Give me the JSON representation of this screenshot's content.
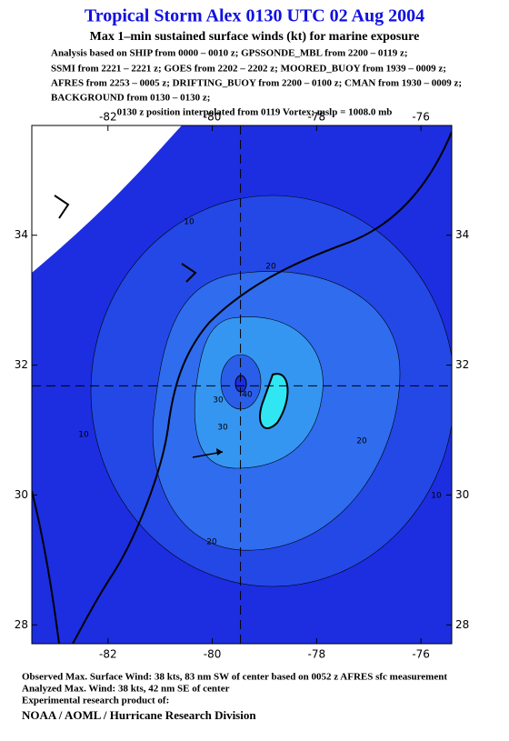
{
  "header": {
    "title": "Tropical Storm Alex 0130 UTC 02 Aug 2004",
    "subtitle": "Max 1–min sustained surface winds (kt) for marine exposure",
    "analysis_lines": [
      "Analysis based on  SHIP from 0000 – 0010 z;  GPSSONDE_MBL from 2200 – 0119 z;",
      "SSMI from 2221 – 2221 z;  GOES from 2202 – 2202 z;  MOORED_BUOY from 1939 – 0009 z;",
      "AFRES from 2253 – 0005 z;  DRIFTING_BUOY from 2200 – 0100 z;  CMAN from 1930 – 0009 z;",
      "BACKGROUND from 0130 – 0130 z;"
    ],
    "position_note": "0130 z position interpolated from 0119 Vortex; mslp = 1008.0 mb"
  },
  "chart_data": {
    "type": "contour-map",
    "xlim": [
      -83.46,
      -75.41
    ],
    "ylim": [
      27.71,
      35.69
    ],
    "xticks": [
      -82,
      -80,
      -78,
      -76
    ],
    "yticks": [
      28,
      30,
      32,
      34
    ],
    "storm_center": {
      "lon": -79.46,
      "lat": 31.68
    },
    "contour_labels": [
      10,
      20,
      30,
      30,
      20,
      20,
      10,
      10,
      40
    ]
  },
  "footer": {
    "lines": [
      "Observed Max. Surface Wind: 38 kts, 83 nm SW of center based on 0052 z AFRES sfc measurement",
      "Analyzed Max. Wind: 38 kts, 42 nm SE of center",
      "Experimental research product of:"
    ],
    "org": "NOAA / AOML / Hurricane Research Division"
  }
}
